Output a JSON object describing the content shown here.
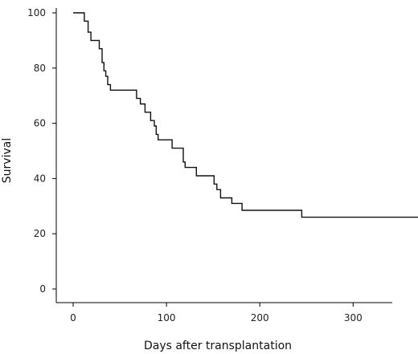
{
  "chart_data": {
    "type": "line",
    "step": true,
    "title": "",
    "xlabel": "Days after transplantation",
    "ylabel": "Survival",
    "xlim": [
      -5,
      390
    ],
    "ylim": [
      -5,
      100
    ],
    "x_ticks": [
      0,
      100,
      200,
      300
    ],
    "y_ticks": [
      0,
      20,
      40,
      60,
      80,
      100
    ],
    "grid": false,
    "legend": "none",
    "line_color": "#111111",
    "series": [
      {
        "points": [
          [
            0,
            100
          ],
          [
            12,
            100
          ],
          [
            12,
            97
          ],
          [
            16,
            97
          ],
          [
            16,
            93
          ],
          [
            19,
            93
          ],
          [
            19,
            90
          ],
          [
            28,
            90
          ],
          [
            28,
            87
          ],
          [
            31,
            87
          ],
          [
            31,
            82
          ],
          [
            33,
            82
          ],
          [
            33,
            79
          ],
          [
            35,
            79
          ],
          [
            35,
            77
          ],
          [
            37,
            77
          ],
          [
            37,
            74
          ],
          [
            40,
            74
          ],
          [
            40,
            72
          ],
          [
            68,
            72
          ],
          [
            68,
            69
          ],
          [
            72,
            69
          ],
          [
            72,
            67
          ],
          [
            77,
            67
          ],
          [
            77,
            64
          ],
          [
            83,
            64
          ],
          [
            83,
            61
          ],
          [
            87,
            61
          ],
          [
            87,
            59
          ],
          [
            89,
            59
          ],
          [
            89,
            56
          ],
          [
            91,
            56
          ],
          [
            91,
            54
          ],
          [
            106,
            54
          ],
          [
            106,
            51
          ],
          [
            118,
            51
          ],
          [
            118,
            46
          ],
          [
            120,
            46
          ],
          [
            120,
            44
          ],
          [
            132,
            44
          ],
          [
            132,
            41
          ],
          [
            151,
            41
          ],
          [
            151,
            38
          ],
          [
            154,
            38
          ],
          [
            154,
            36
          ],
          [
            158,
            36
          ],
          [
            158,
            33
          ],
          [
            170,
            33
          ],
          [
            170,
            31
          ],
          [
            181,
            31
          ],
          [
            181,
            28.5
          ],
          [
            245,
            28.5
          ],
          [
            245,
            26
          ],
          [
            390,
            26
          ]
        ]
      }
    ]
  }
}
